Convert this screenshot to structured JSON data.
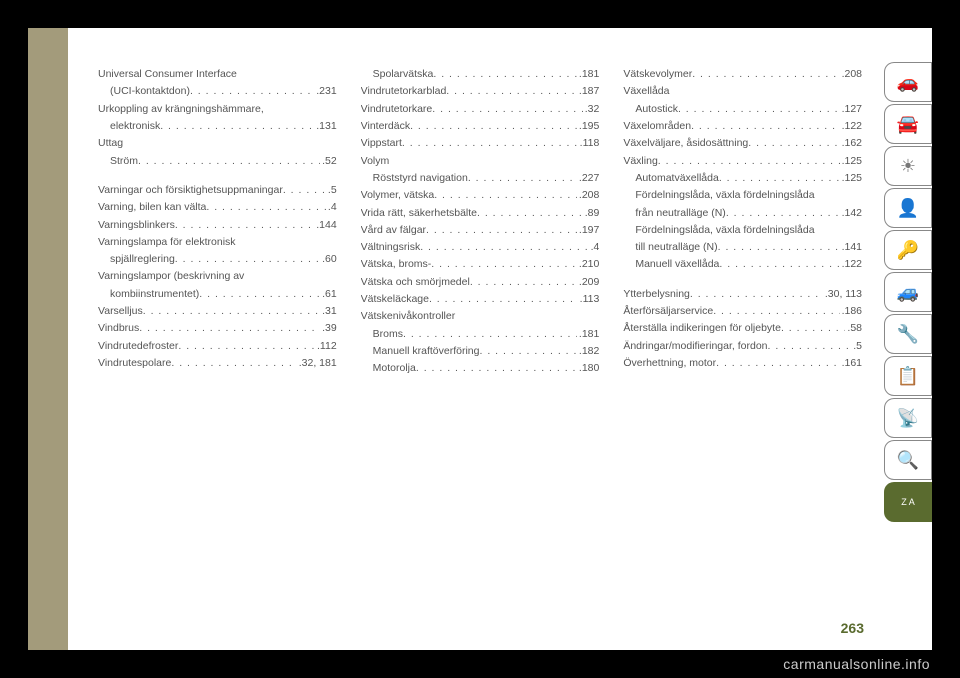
{
  "page_number": "263",
  "watermark": "carmanualsonline.info",
  "columns": [
    [
      {
        "label": "Universal Consumer Interface",
        "page": "",
        "noDots": true
      },
      {
        "label": "(UCI-kontaktdon)",
        "page": ".231",
        "indent": true
      },
      {
        "label": "Urkoppling av krängningshämmare,",
        "page": "",
        "noDots": true
      },
      {
        "label": "elektronisk",
        "page": ".131",
        "indent": true
      },
      {
        "label": "Uttag",
        "page": "",
        "noDots": true
      },
      {
        "label": "Ström",
        "page": ".52",
        "indent": true
      },
      {
        "spacer": true
      },
      {
        "label": "Varningar och försiktighetsuppmaningar",
        "page": ".5"
      },
      {
        "label": "Varning, bilen kan välta",
        "page": ".4"
      },
      {
        "label": "Varningsblinkers",
        "page": ".144"
      },
      {
        "label": "Varningslampa för elektronisk",
        "page": "",
        "noDots": true
      },
      {
        "label": "spjällreglering",
        "page": ".60",
        "indent": true
      },
      {
        "label": "Varningslampor (beskrivning av",
        "page": "",
        "noDots": true
      },
      {
        "label": "kombiinstrumentet)",
        "page": ".61",
        "indent": true
      },
      {
        "label": "Varselljus",
        "page": ".31"
      },
      {
        "label": "Vindbrus",
        "page": ".39"
      },
      {
        "label": "Vindrutedefroster",
        "page": ".112"
      },
      {
        "label": "Vindrutespolare",
        "page": ".32, 181"
      }
    ],
    [
      {
        "label": "Spolarvätska",
        "page": ".181",
        "indent": true
      },
      {
        "label": "Vindrutetorkarblad",
        "page": ".187"
      },
      {
        "label": "Vindrutetorkare",
        "page": ".32"
      },
      {
        "label": "Vinterdäck",
        "page": ".195"
      },
      {
        "label": "Vippstart",
        "page": ".118"
      },
      {
        "label": "Volym",
        "page": "",
        "noDots": true
      },
      {
        "label": "Röststyrd navigation",
        "page": ".227",
        "indent": true
      },
      {
        "label": "Volymer, vätska",
        "page": ".208"
      },
      {
        "label": "Vrida rätt, säkerhetsbälte",
        "page": ".89"
      },
      {
        "label": "Vård av fälgar",
        "page": ".197"
      },
      {
        "label": "Vältningsrisk",
        "page": ".4"
      },
      {
        "label": "Vätska, broms-",
        "page": ".210"
      },
      {
        "label": "Vätska och smörjmedel",
        "page": ".209"
      },
      {
        "label": "Vätskeläckage",
        "page": ".113"
      },
      {
        "label": "Vätskenivåkontroller",
        "page": "",
        "noDots": true
      },
      {
        "label": "Broms",
        "page": ".181",
        "indent": true
      },
      {
        "label": "Manuell kraftöverföring",
        "page": ".182",
        "indent": true
      },
      {
        "label": "Motorolja",
        "page": ".180",
        "indent": true
      }
    ],
    [
      {
        "label": "Vätskevolymer",
        "page": ".208"
      },
      {
        "label": "Växellåda",
        "page": "",
        "noDots": true
      },
      {
        "label": "Autostick",
        "page": ".127",
        "indent": true
      },
      {
        "label": "Växelområden",
        "page": ".122"
      },
      {
        "label": "Växelväljare, åsidosättning",
        "page": ".162"
      },
      {
        "label": "Växling",
        "page": ".125"
      },
      {
        "label": "Automatväxellåda",
        "page": ".125",
        "indent": true
      },
      {
        "label": "Fördelningslåda, växla fördelningslåda",
        "page": "",
        "noDots": true,
        "indent": true
      },
      {
        "label": "från neutralläge (N)",
        "page": ".142",
        "indent": true
      },
      {
        "label": "Fördelningslåda, växla fördelningslåda",
        "page": "",
        "noDots": true,
        "indent": true
      },
      {
        "label": "till neutralläge (N)",
        "page": ".141",
        "indent": true
      },
      {
        "label": "Manuell växellåda",
        "page": ".122",
        "indent": true
      },
      {
        "spacer": true
      },
      {
        "label": "Ytterbelysning",
        "page": ".30, 113"
      },
      {
        "label": "Återförsäljarservice",
        "page": ".186"
      },
      {
        "label": "Återställa indikeringen för oljebyte",
        "page": ".58"
      },
      {
        "label": "Ändringar/modifieringar, fordon",
        "page": ".5"
      },
      {
        "label": "Överhettning, motor",
        "page": ".161"
      }
    ]
  ],
  "sidebar_icons": [
    {
      "name": "car-search-icon",
      "glyph": "🚗"
    },
    {
      "name": "car-info-icon",
      "glyph": "🚘"
    },
    {
      "name": "sun-mail-icon",
      "glyph": "☀"
    },
    {
      "name": "airbag-icon",
      "glyph": "👤"
    },
    {
      "name": "key-wheel-icon",
      "glyph": "🔑"
    },
    {
      "name": "car-crash-icon",
      "glyph": "🚙"
    },
    {
      "name": "car-wrench-icon",
      "glyph": "🔧"
    },
    {
      "name": "list-gear-icon",
      "glyph": "📋"
    },
    {
      "name": "signal-icon",
      "glyph": "📡"
    },
    {
      "name": "search-icon",
      "glyph": "🔍"
    },
    {
      "name": "index-icon",
      "glyph": "Z A",
      "active": true
    }
  ]
}
